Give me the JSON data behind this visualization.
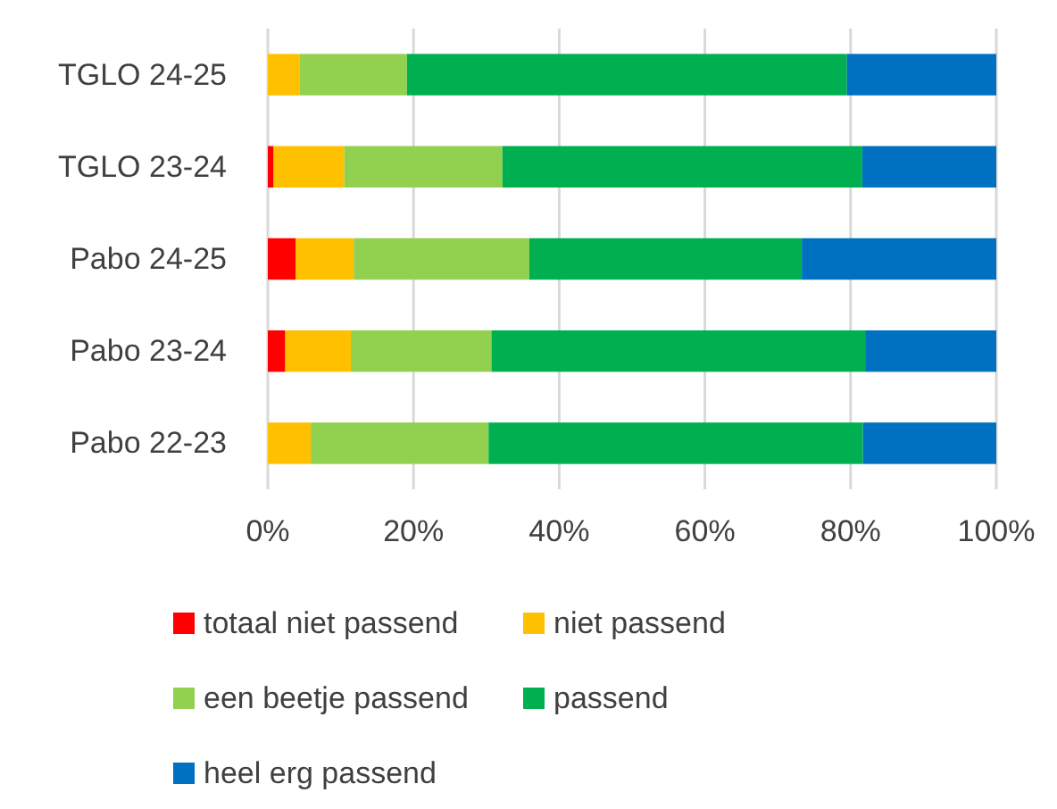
{
  "chart_data": {
    "type": "bar",
    "orientation": "horizontal",
    "stacked": true,
    "categories": [
      "TGLO 24-25",
      "TGLO 23-24",
      "Pabo 24-25",
      "Pabo 23-24",
      "Pabo 22-23"
    ],
    "series": [
      {
        "name": "totaal niet passend",
        "color": "#ff0000",
        "values": [
          0,
          0.8,
          3.8,
          2.4,
          0
        ]
      },
      {
        "name": "niet passend",
        "color": "#ffc000",
        "values": [
          4.4,
          9.7,
          8.0,
          9.0,
          5.9
        ]
      },
      {
        "name": "een beetje passend",
        "color": "#92d050",
        "values": [
          14.7,
          21.7,
          24.1,
          19.3,
          24.4
        ]
      },
      {
        "name": "passend",
        "color": "#00b050",
        "values": [
          60.4,
          49.4,
          37.4,
          51.3,
          51.4
        ]
      },
      {
        "name": "heel erg passend",
        "color": "#0070c0",
        "values": [
          20.5,
          18.4,
          26.7,
          18.0,
          18.3
        ]
      }
    ],
    "xlim": [
      0,
      100
    ],
    "xticks": [
      {
        "value": 0,
        "label": "0%"
      },
      {
        "value": 20,
        "label": "20%"
      },
      {
        "value": 40,
        "label": "40%"
      },
      {
        "value": 60,
        "label": "60%"
      },
      {
        "value": 80,
        "label": "80%"
      },
      {
        "value": 100,
        "label": "100%"
      }
    ],
    "grid": "x",
    "legend": "bottom"
  }
}
